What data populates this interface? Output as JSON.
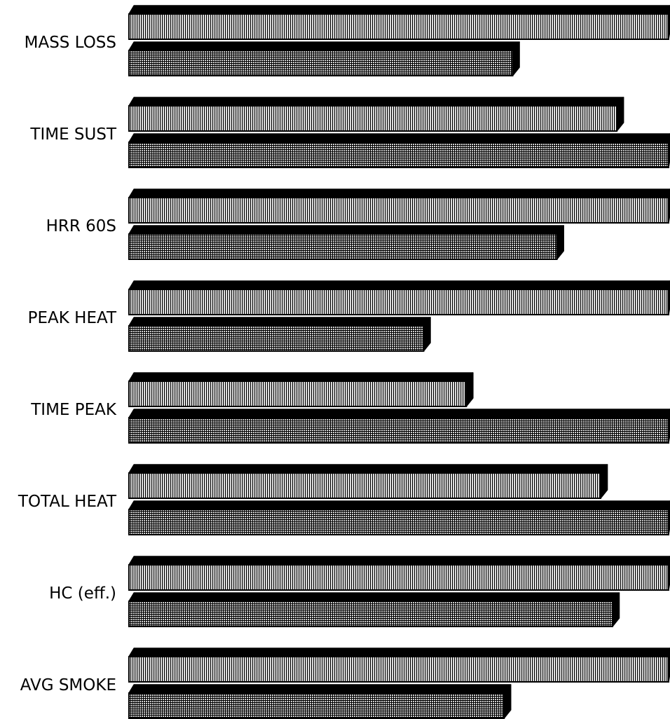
{
  "chart_data": {
    "type": "bar",
    "orientation": "horizontal",
    "style": "3d",
    "categories": [
      "MASS LOSS",
      "TIME SUST",
      "HRR 60S",
      "PEAK HEAT",
      "TIME PEAK",
      "TOTAL HEAT",
      "HC (eff.)",
      "AVG SMOKE"
    ],
    "series": [
      {
        "pattern": "vertical-lines",
        "values": [
          100,
          90.4,
          100,
          100,
          62.5,
          87.4,
          100,
          100
        ]
      },
      {
        "pattern": "grid",
        "values": [
          71.1,
          100,
          79.3,
          54.6,
          100,
          100,
          89.6,
          69.5
        ]
      }
    ],
    "xlim": [
      0,
      100
    ],
    "grid": false,
    "legend": "none",
    "colors": {
      "bar_outline": "#000000",
      "bar_fill": "#ffffff",
      "bar_depth": "#000000",
      "background": "#ffffff"
    }
  }
}
